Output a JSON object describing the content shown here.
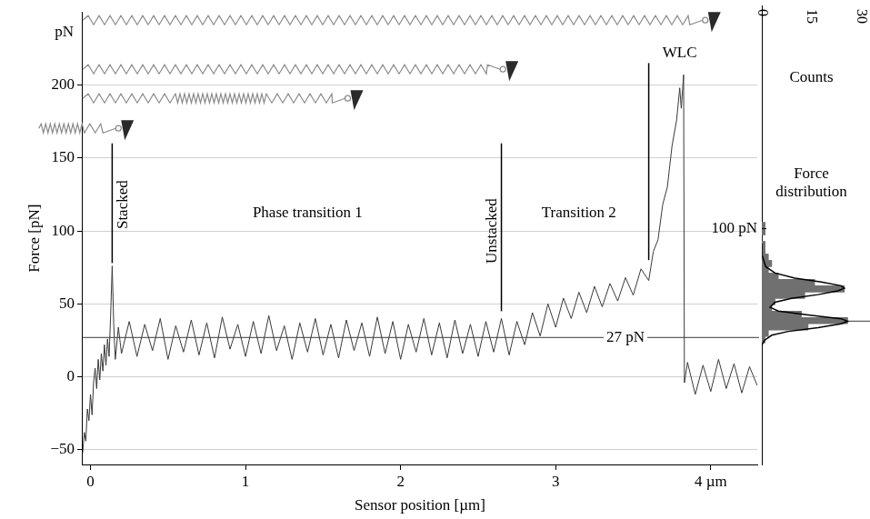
{
  "chart_data": [
    {
      "type": "line",
      "xlabel": "Sensor position [µm]",
      "ylabel": "Force [pN]",
      "x": [
        -0.05,
        -0.04,
        -0.03,
        -0.02,
        -0.01,
        0,
        0.01,
        0.02,
        0.03,
        0.04,
        0.05,
        0.06,
        0.07,
        0.08,
        0.09,
        0.1,
        0.11,
        0.12,
        0.13,
        0.14,
        0.15,
        0.16,
        0.18,
        0.2,
        0.25,
        0.3,
        0.35,
        0.4,
        0.45,
        0.5,
        0.55,
        0.6,
        0.65,
        0.7,
        0.75,
        0.8,
        0.85,
        0.9,
        0.95,
        1,
        1.05,
        1.1,
        1.15,
        1.2,
        1.25,
        1.3,
        1.35,
        1.4,
        1.45,
        1.5,
        1.55,
        1.6,
        1.65,
        1.7,
        1.75,
        1.8,
        1.85,
        1.9,
        1.95,
        2,
        2.05,
        2.1,
        2.15,
        2.2,
        2.25,
        2.3,
        2.35,
        2.4,
        2.45,
        2.5,
        2.55,
        2.6,
        2.65,
        2.7,
        2.75,
        2.8,
        2.85,
        2.9,
        2.95,
        3,
        3.05,
        3.1,
        3.15,
        3.2,
        3.25,
        3.3,
        3.35,
        3.4,
        3.45,
        3.5,
        3.55,
        3.6,
        3.63,
        3.66,
        3.69,
        3.72,
        3.75,
        3.78,
        3.8,
        3.81,
        3.825,
        3.83,
        3.85,
        3.9,
        3.95,
        4,
        4.05,
        4.1,
        4.15,
        4.2,
        4.25,
        4.3
      ],
      "values": [
        -52,
        -38,
        -44,
        -22,
        -30,
        -12,
        -26,
        -4,
        6,
        -8,
        12,
        -2,
        16,
        4,
        22,
        8,
        26,
        14,
        42,
        76,
        36,
        12,
        34,
        16,
        38,
        14,
        36,
        18,
        40,
        12,
        35,
        17,
        39,
        15,
        37,
        13,
        41,
        19,
        36,
        14,
        38,
        16,
        42,
        18,
        35,
        12,
        37,
        17,
        40,
        15,
        36,
        13,
        39,
        18,
        37,
        14,
        41,
        16,
        38,
        12,
        36,
        17,
        40,
        15,
        37,
        13,
        39,
        16,
        36,
        14,
        38,
        17,
        40,
        15,
        38,
        22,
        44,
        28,
        50,
        34,
        54,
        40,
        58,
        44,
        62,
        48,
        64,
        52,
        68,
        56,
        74,
        66,
        86,
        94,
        118,
        130,
        158,
        176,
        198,
        184,
        207,
        -4,
        10,
        -12,
        8,
        -10,
        12,
        -8,
        9,
        -11,
        7,
        -6
      ],
      "color": "#3a3a3a",
      "xlim": [
        -0.05,
        4.3
      ],
      "xticks": [
        0,
        1,
        2,
        3,
        {
          "value": 4,
          "label": "4 µm"
        }
      ],
      "ylim": [
        -60,
        250
      ],
      "yticks": [
        {
          "value": -50,
          "label": "−50"
        },
        0,
        50,
        100,
        150,
        200
      ],
      "grid": true,
      "reference_line": {
        "value": 27,
        "label": "27 pN",
        "x": 3.45
      },
      "annotations": [
        {
          "text": "pN",
          "x": -0.17,
          "y": 236
        },
        {
          "text": "Stacked",
          "x": 0.21,
          "y": 118,
          "vertical": true,
          "line": {
            "x": 0.14,
            "y": [
              78,
              160
            ]
          }
        },
        {
          "text": "Phase transition 1",
          "x": 1.4,
          "y": 112
        },
        {
          "text": "Unstacked",
          "x": 2.59,
          "y": 100,
          "vertical": true,
          "line": {
            "x": 2.65,
            "y": [
              45,
              160
            ]
          }
        },
        {
          "text": "Transition 2",
          "x": 3.15,
          "y": 112
        },
        {
          "text": "WLC",
          "x": 3.8,
          "y": 222,
          "line": {
            "x": 3.6,
            "y": [
              80,
              215
            ]
          }
        }
      ]
    },
    {
      "type": "histogram",
      "title": "Force distribution",
      "orientation": "horizontal",
      "bins": [
        10,
        15,
        20,
        25,
        30,
        35,
        40,
        45,
        50,
        55,
        60,
        65,
        70,
        75,
        80,
        85,
        90,
        95,
        100,
        105
      ],
      "counts": [
        1,
        2,
        14,
        26,
        12,
        3,
        4,
        13,
        25,
        16,
        5,
        2,
        3,
        2,
        1,
        1,
        0,
        1,
        1
      ],
      "color": "#707070",
      "fit": {
        "force": [
          8,
          12,
          16,
          19,
          22,
          25,
          27,
          29,
          32,
          35,
          38,
          42,
          45,
          48,
          51,
          53,
          55,
          58,
          61,
          65,
          70,
          78,
          88
        ],
        "counts": [
          0,
          0.8,
          3,
          8,
          17,
          24,
          26,
          24,
          14,
          5,
          2.5,
          4,
          9,
          17,
          23,
          25,
          24,
          18,
          10,
          4,
          1.2,
          0.2,
          0
        ],
        "color": "#000000"
      },
      "xlabel": "Counts",
      "xlim": [
        0,
        30
      ],
      "xticks": [
        0,
        15,
        30
      ],
      "ylim": [
        -60,
        250
      ],
      "yticks": [
        {
          "value": 100,
          "label": "100 pN"
        }
      ]
    }
  ]
}
